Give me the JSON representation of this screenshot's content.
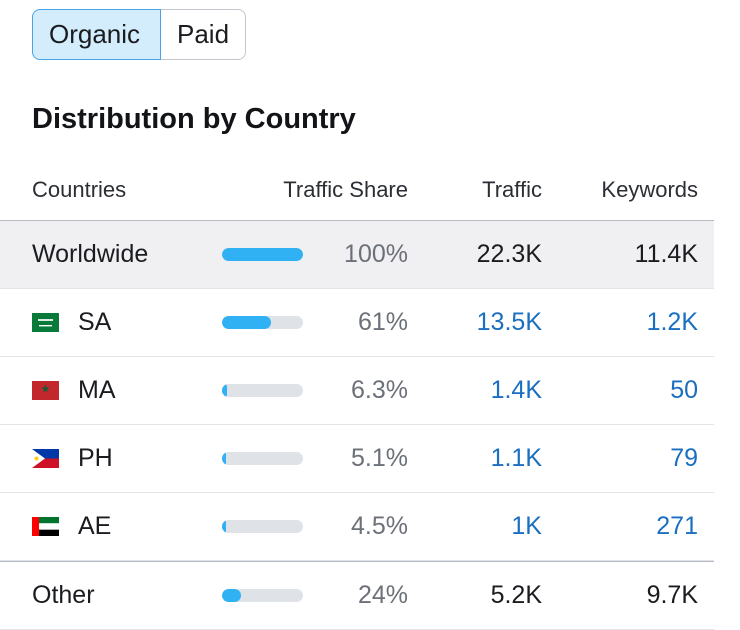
{
  "toggle": {
    "organic_label": "Organic",
    "paid_label": "Paid"
  },
  "title": "Distribution by Country",
  "table": {
    "headers": {
      "countries": "Countries",
      "traffic_share": "Traffic Share",
      "traffic": "Traffic",
      "keywords": "Keywords"
    },
    "rows": [
      {
        "name": "Worldwide",
        "flag": "",
        "share": "100%",
        "share_fraction": 1.0,
        "traffic": "22.3K",
        "keywords": "11.4K",
        "link": false
      },
      {
        "name": "SA",
        "flag": "saudi-arabia-flag-icon",
        "share": "61%",
        "share_fraction": 0.61,
        "traffic": "13.5K",
        "keywords": "1.2K",
        "link": true
      },
      {
        "name": "MA",
        "flag": "morocco-flag-icon",
        "share": "6.3%",
        "share_fraction": 0.063,
        "traffic": "1.4K",
        "keywords": "50",
        "link": true
      },
      {
        "name": "PH",
        "flag": "philippines-flag-icon",
        "share": "5.1%",
        "share_fraction": 0.051,
        "traffic": "1.1K",
        "keywords": "79",
        "link": true
      },
      {
        "name": "AE",
        "flag": "uae-flag-icon",
        "share": "4.5%",
        "share_fraction": 0.045,
        "traffic": "1K",
        "keywords": "271",
        "link": true
      },
      {
        "name": "Other",
        "flag": "",
        "share": "24%",
        "share_fraction": 0.24,
        "traffic": "5.2K",
        "keywords": "9.7K",
        "link": false
      }
    ]
  },
  "colors": {
    "accent": "#2fb1f3",
    "link": "#1a6fc1",
    "toggle_active_bg": "#d3edfc",
    "toggle_active_border": "#4aa3ea"
  }
}
